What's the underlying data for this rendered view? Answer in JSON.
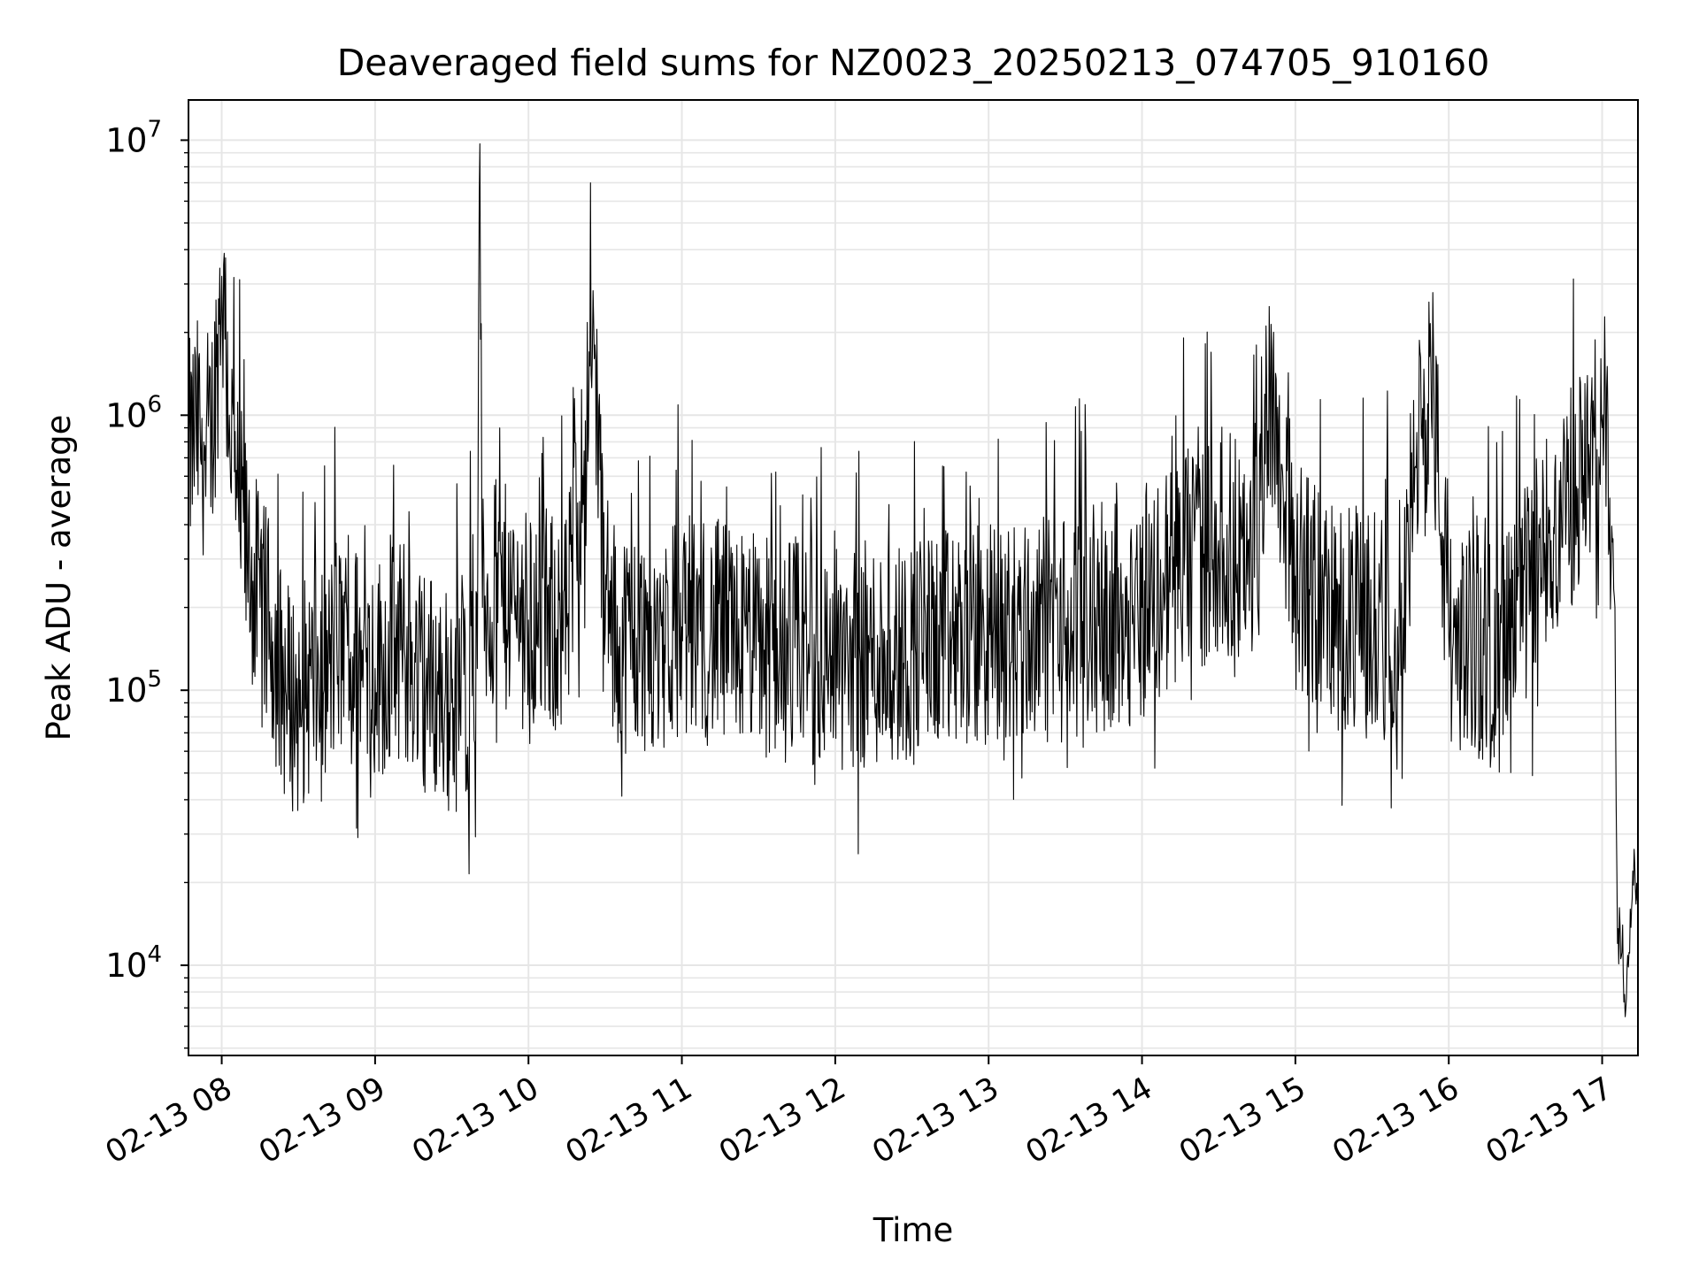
{
  "chart_data": {
    "type": "line",
    "title": "Deaveraged field sums for NZ0023_20250213_074705_910160",
    "xlabel": "Time",
    "ylabel": "Peak ADU - average",
    "yscale": "log",
    "xlim": [
      "2025-02-13 07:47",
      "2025-02-13 17:14"
    ],
    "ylim": [
      4700,
      14000000
    ],
    "grid": true,
    "grid_minor": true,
    "line_color": "#000000",
    "grid_color": "#e6e6e6",
    "x_ticks": [
      {
        "value": "2025-02-13 08:00",
        "label": "02-13 08"
      },
      {
        "value": "2025-02-13 09:00",
        "label": "02-13 09"
      },
      {
        "value": "2025-02-13 10:00",
        "label": "02-13 10"
      },
      {
        "value": "2025-02-13 11:00",
        "label": "02-13 11"
      },
      {
        "value": "2025-02-13 12:00",
        "label": "02-13 12"
      },
      {
        "value": "2025-02-13 13:00",
        "label": "02-13 13"
      },
      {
        "value": "2025-02-13 14:00",
        "label": "02-13 14"
      },
      {
        "value": "2025-02-13 15:00",
        "label": "02-13 15"
      },
      {
        "value": "2025-02-13 16:00",
        "label": "02-13 16"
      },
      {
        "value": "2025-02-13 17:00",
        "label": "02-13 17"
      }
    ],
    "y_ticks": [
      {
        "value": 10000,
        "base": "10",
        "exp": "4"
      },
      {
        "value": 100000,
        "base": "10",
        "exp": "5"
      },
      {
        "value": 1000000,
        "base": "10",
        "exp": "6"
      },
      {
        "value": 10000000,
        "base": "10",
        "exp": "7"
      }
    ],
    "series": [
      {
        "x": [
          "2025-02-13 07:47",
          "2025-02-13 07:50",
          "2025-02-13 07:53",
          "2025-02-13 07:56",
          "2025-02-13 07:58",
          "2025-02-13 08:00",
          "2025-02-13 08:03",
          "2025-02-13 08:06",
          "2025-02-13 08:10",
          "2025-02-13 08:15",
          "2025-02-13 08:20",
          "2025-02-13 08:25",
          "2025-02-13 08:30",
          "2025-02-13 08:35",
          "2025-02-13 08:40",
          "2025-02-13 08:45",
          "2025-02-13 08:50",
          "2025-02-13 08:55",
          "2025-02-13 09:00",
          "2025-02-13 09:10",
          "2025-02-13 09:20",
          "2025-02-13 09:30",
          "2025-02-13 09:40",
          "2025-02-13 09:41",
          "2025-02-13 09:42",
          "2025-02-13 09:50",
          "2025-02-13 10:00",
          "2025-02-13 10:15",
          "2025-02-13 10:26",
          "2025-02-13 10:30",
          "2025-02-13 10:45",
          "2025-02-13 11:00",
          "2025-02-13 11:30",
          "2025-02-13 12:00",
          "2025-02-13 12:30",
          "2025-02-13 13:00",
          "2025-02-13 13:30",
          "2025-02-13 14:00",
          "2025-02-13 14:15",
          "2025-02-13 14:30",
          "2025-02-13 14:45",
          "2025-02-13 14:50",
          "2025-02-13 15:00",
          "2025-02-13 15:20",
          "2025-02-13 15:40",
          "2025-02-13 15:53",
          "2025-02-13 16:00",
          "2025-02-13 16:20",
          "2025-02-13 16:40",
          "2025-02-13 16:50",
          "2025-02-13 16:55",
          "2025-02-13 16:58",
          "2025-02-13 17:00",
          "2025-02-13 17:03",
          "2025-02-13 17:05",
          "2025-02-13 17:06",
          "2025-02-13 17:08",
          "2025-02-13 17:09",
          "2025-02-13 17:11",
          "2025-02-13 17:12",
          "2025-02-13 17:14"
        ],
        "y": [
          700000,
          900000,
          800000,
          850000,
          1500000,
          3200000,
          1000000,
          500000,
          300000,
          200000,
          150000,
          100000,
          90000,
          110000,
          100000,
          150000,
          130000,
          140000,
          120000,
          140000,
          110000,
          90000,
          120000,
          9700000,
          200000,
          220000,
          180000,
          170000,
          1800000,
          160000,
          150000,
          170000,
          150000,
          130000,
          140000,
          160000,
          170000,
          200000,
          280000,
          350000,
          300000,
          1400000,
          260000,
          180000,
          170000,
          1550000,
          160000,
          130000,
          350000,
          550000,
          700000,
          750000,
          900000,
          500000,
          200000,
          12000,
          14000,
          6500,
          16000,
          22000,
          17000
        ]
      }
    ]
  }
}
